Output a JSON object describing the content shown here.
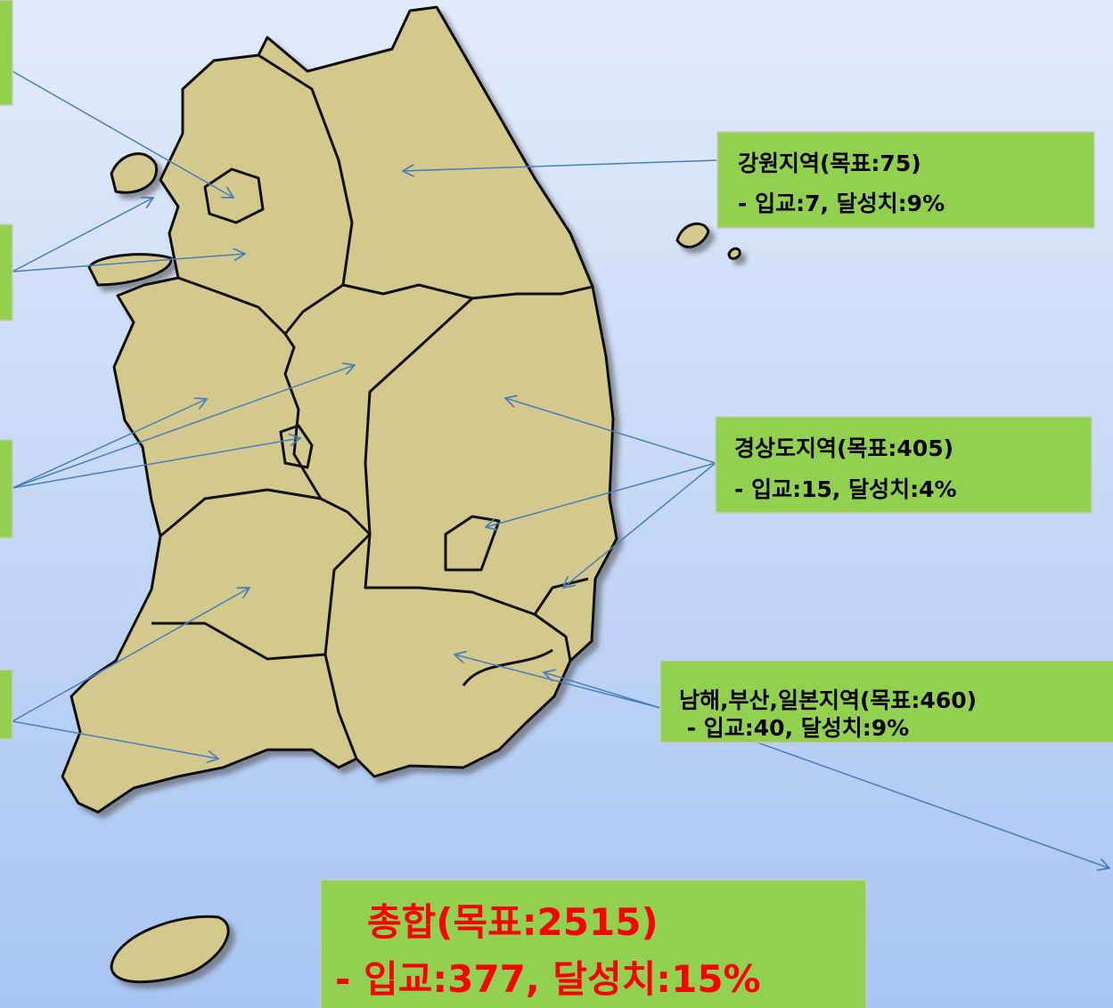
{
  "labels": [
    {
      "title": "강원지역(목표:75)",
      "detail": "- 입교:7, 달성치:9%"
    },
    {
      "title": "경상도지역(목표:405)",
      "detail": "- 입교:15, 달성치:4%"
    },
    {
      "title": "남해,부산,일본지역(목표:460)",
      "detail": " - 입교:40, 달성치:9%"
    }
  ],
  "total": {
    "title": "총합(목표:2515)",
    "detail": "- 입교:377, 달성치:15%"
  }
}
